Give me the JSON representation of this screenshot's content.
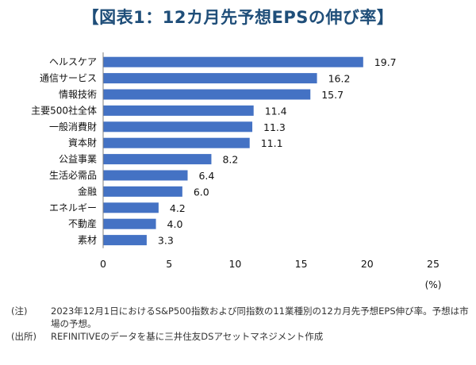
{
  "title": "【図表1：12カ月先予想EPSの伸び率】",
  "chart_data": {
    "type": "bar",
    "orientation": "horizontal",
    "categories": [
      "ヘルスケア",
      "通信サービス",
      "情報技術",
      "主要500社全体",
      "一般消費財",
      "資本財",
      "公益事業",
      "生活必需品",
      "金融",
      "エネルギー",
      "不動産",
      "素材"
    ],
    "values": [
      19.7,
      16.2,
      15.7,
      11.4,
      11.3,
      11.1,
      8.2,
      6.4,
      6.0,
      4.2,
      4.0,
      3.3
    ],
    "value_labels": [
      "19.7",
      "16.2",
      "15.7",
      "11.4",
      "11.3",
      "11.1",
      "8.2",
      "6.4",
      "6.0",
      "4.2",
      "4.0",
      "3.3"
    ],
    "xlim": [
      0,
      25
    ],
    "xticks": [
      "0",
      "5",
      "10",
      "15",
      "20",
      "25"
    ],
    "xlabel": "(%)",
    "bar_color": "#4472c4",
    "grid": false
  },
  "notes": [
    {
      "key": "(注)",
      "text": "2023年12月1日におけるS&P500指数および同指数の11業種別の12カ月先予想EPS伸び率。予想は市場の予想。"
    },
    {
      "key": "(出所)",
      "text": "REFINITIVEのデータを基に三井住友DSアセットマネジメント作成"
    }
  ]
}
